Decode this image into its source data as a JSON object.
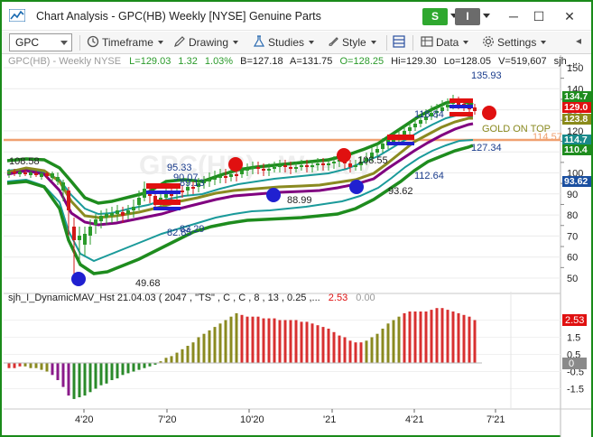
{
  "window": {
    "title": "Chart Analysis - GPC(HB) Weekly [NYSE] Genuine Parts",
    "btn_s": "S",
    "btn_i": "I",
    "minimize": "─",
    "maximize": "☐",
    "close": "✕"
  },
  "toolbar": {
    "symbol": "GPC",
    "timeframe": "Timeframe",
    "drawing": "Drawing",
    "studies": "Studies",
    "style": "Style",
    "data": "Data",
    "settings": "Settings"
  },
  "header": {
    "symbol_info": "GPC(HB) - Weekly  NYSE",
    "last": "L=129.03",
    "change": "1.32",
    "change_pct": "1.03%",
    "bid": "B=127.18",
    "ask": "A=131.75",
    "open": "O=128.25",
    "high": "Hi=129.30",
    "low": "Lo=128.05",
    "volume": "V=519,607",
    "study_short": "sjh_..."
  },
  "watermark": "GPC(HB) - Weekly",
  "annotations": {
    "high_135": "135.93",
    "v118": "118.84",
    "gold_on_top": "GOLD ON TOP",
    "v114": "114.57",
    "v127": "127.34",
    "v112": "112.64",
    "v108": "108.55",
    "v104": "104.39",
    "v93_62": "93.62",
    "v88_99": "88.99",
    "v95_33": "95.33",
    "v90_07": "90.07",
    "v89_13": "89.13",
    "v83_29": "83.29",
    "v82_85": "82.85",
    "v108_58": "108.58",
    "v49_68": "49.68"
  },
  "price_axis": {
    "ticks": [
      "150",
      "140",
      "130",
      "120",
      "110",
      "100",
      "90",
      "80",
      "70",
      "60",
      "50"
    ],
    "badges": [
      {
        "label": "134.7",
        "color": "#1e8c1e"
      },
      {
        "label": "129.0",
        "color": "#e01010"
      },
      {
        "label": "123.8",
        "color": "#8a8a1a"
      },
      {
        "label": "114.7",
        "color": "#1a8a8a"
      },
      {
        "label": "110.4",
        "color": "#1e8c1e"
      },
      {
        "label": "93.62",
        "color": "#1a4fa0"
      }
    ]
  },
  "indicator": {
    "title": "sjh_I_DynamicMAV_Hst 21.04.03 ( 2047 , \"TS\" , C , C ,  8 , 13 , 0.25 ,...",
    "value_red": "2.53",
    "value_gray": "0.00",
    "ticks": [
      "2.5",
      "1.5",
      "0.5",
      "-0.5",
      "-1.5"
    ],
    "badge_red": "2.53",
    "badge_zero": "0"
  },
  "x_axis": {
    "labels": [
      "4'20",
      "7'20",
      "10'20",
      "'21",
      "4'21",
      "7'21"
    ]
  },
  "colors": {
    "up_candle": "#2a9a2a",
    "down_candle": "#d01818",
    "band_outer": "#1e8c1e",
    "band_mid": "#1a9a9a",
    "ma_gold": "#8a8a20",
    "ma_purple": "#800080",
    "hist_red": "#d83030",
    "hist_olive": "#8a8a20",
    "hist_purple": "#8a1a8a",
    "hist_green": "#2a8a2a"
  }
}
